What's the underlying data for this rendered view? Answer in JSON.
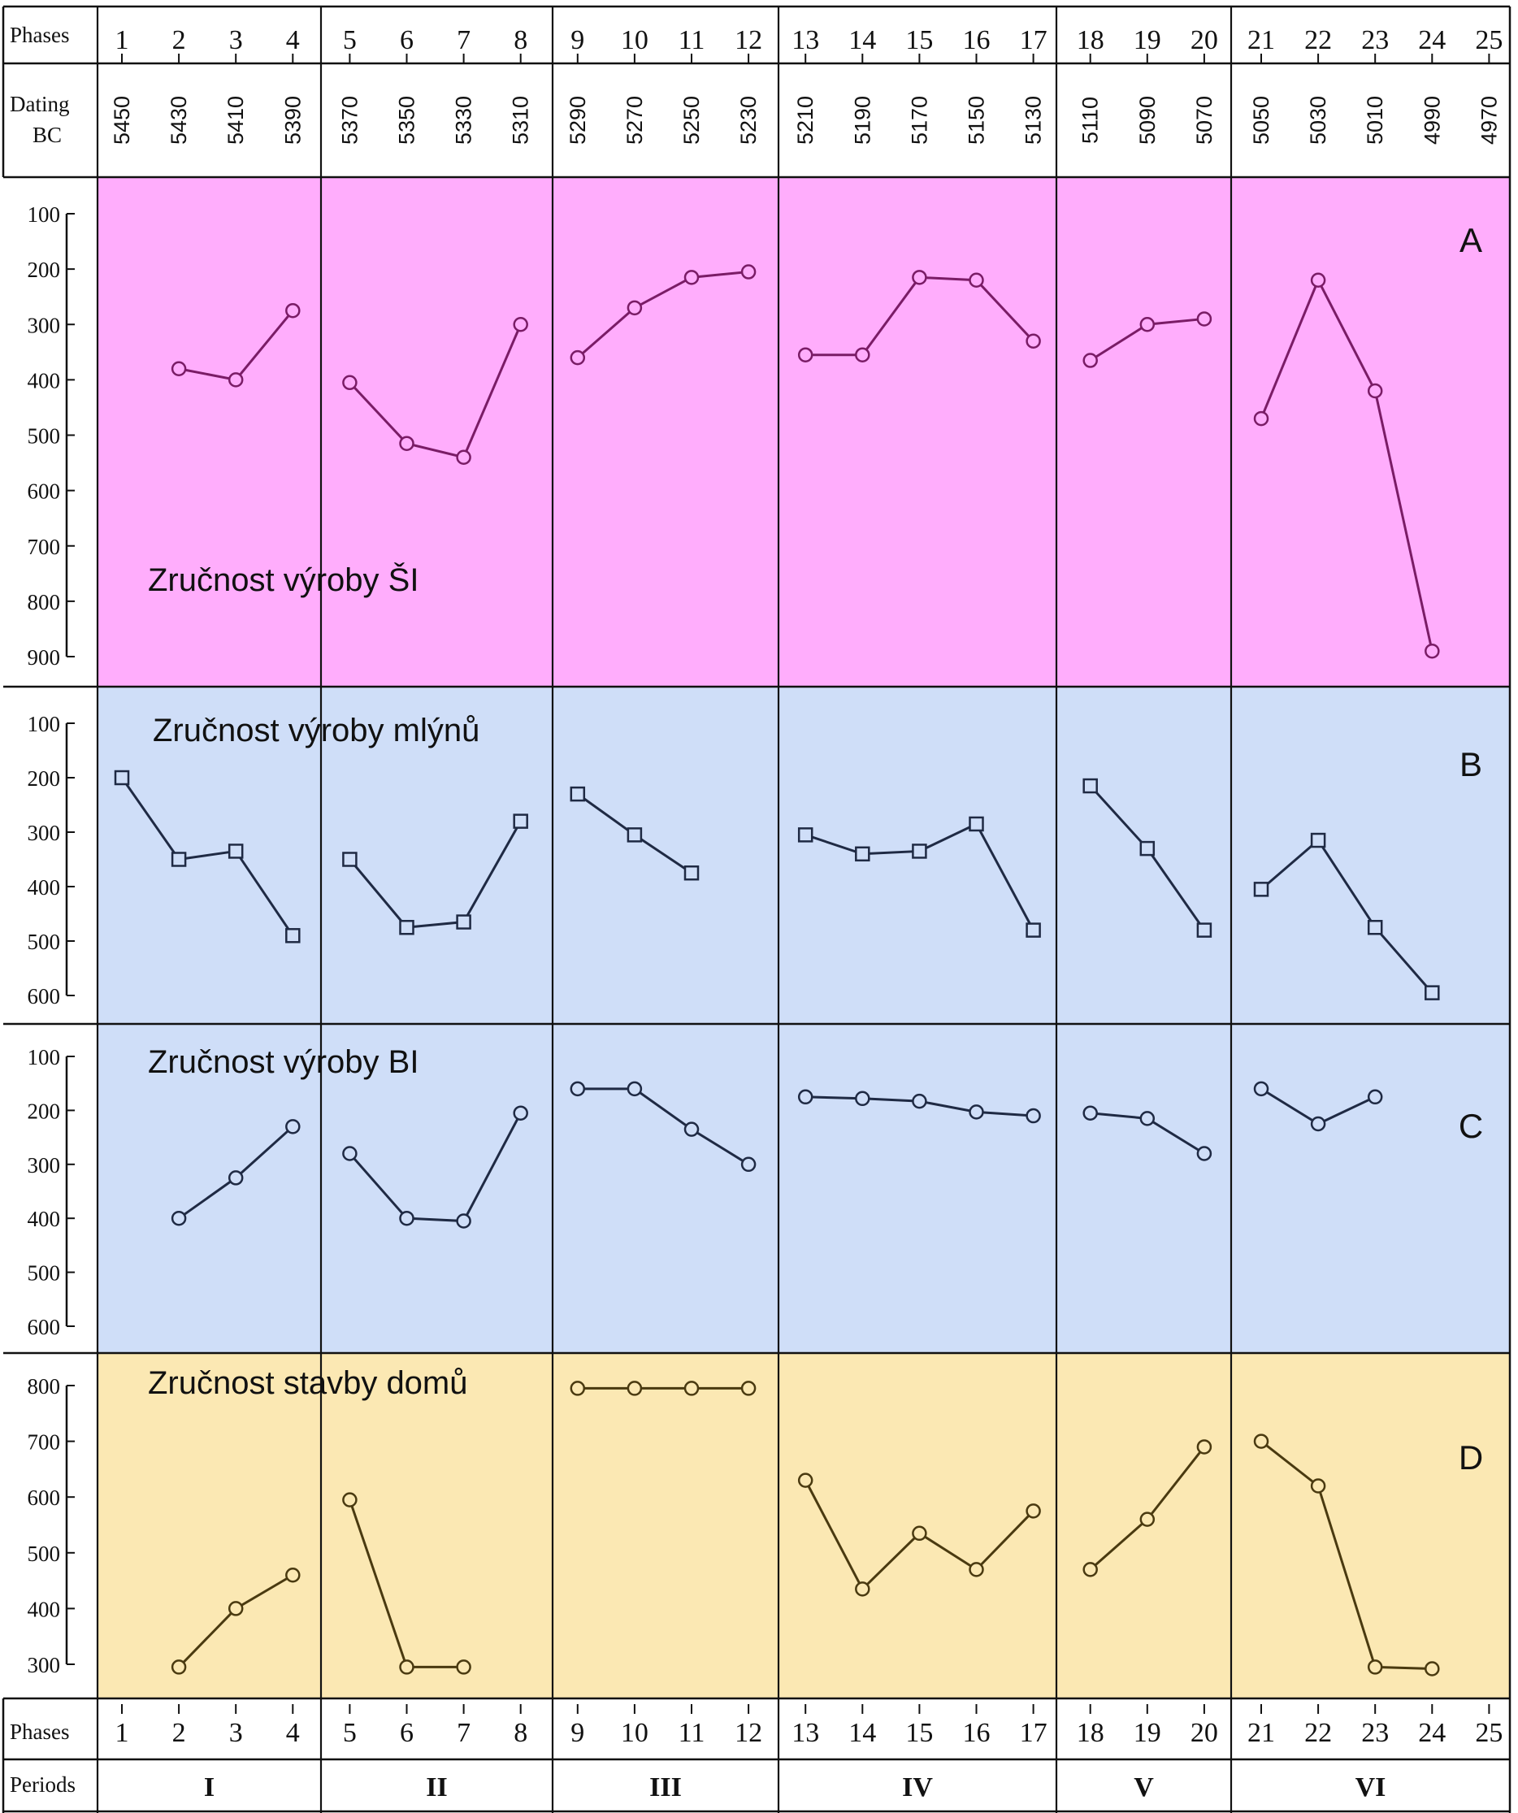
{
  "header": {
    "phases_label": "Phases",
    "dating_label_line1": "Dating",
    "dating_label_line2": "BC",
    "periods_label": "Periods"
  },
  "phases": [
    "1",
    "2",
    "3",
    "4",
    "5",
    "6",
    "7",
    "8",
    "9",
    "10",
    "11",
    "12",
    "13",
    "14",
    "15",
    "16",
    "17",
    "18",
    "19",
    "20",
    "21",
    "22",
    "23",
    "24",
    "25"
  ],
  "dating_bc": [
    "5450",
    "5430",
    "5410",
    "5390",
    "5370",
    "5350",
    "5330",
    "5310",
    "5290",
    "5270",
    "5250",
    "5230",
    "5210",
    "5190",
    "5170",
    "5150",
    "5130",
    "5110",
    "5090",
    "5070",
    "5050",
    "5030",
    "5010",
    "4990",
    "4970"
  ],
  "periods": [
    {
      "label": "I",
      "from_phase": 1,
      "to_phase": 4
    },
    {
      "label": "II",
      "from_phase": 5,
      "to_phase": 8
    },
    {
      "label": "III",
      "from_phase": 9,
      "to_phase": 12
    },
    {
      "label": "IV",
      "from_phase": 13,
      "to_phase": 17
    },
    {
      "label": "V",
      "from_phase": 18,
      "to_phase": 20
    },
    {
      "label": "VI",
      "from_phase": 21,
      "to_phase": 25
    }
  ],
  "colors": {
    "panel_A": "#FFADFC",
    "panel_B": "#CFDEF8",
    "panel_C": "#CFDEF8",
    "panel_D": "#FBE8B3",
    "line_A": "#7A1C66",
    "line_B": "#1F2A44",
    "line_C": "#1F2A44",
    "line_D": "#4A3A10",
    "grid": "#111111"
  },
  "chart_data": [
    {
      "type": "line",
      "letter": "A",
      "title": "Zručnost výroby ŠI",
      "marker": "circle",
      "ylim": [
        100,
        900
      ],
      "y_ticks": [
        100,
        200,
        300,
        400,
        500,
        600,
        700,
        800,
        900
      ],
      "y_inverted": true,
      "segments": [
        {
          "period": "I",
          "x": [
            2,
            3,
            4
          ],
          "y": [
            380,
            400,
            275
          ]
        },
        {
          "period": "II",
          "x": [
            5,
            6,
            7,
            8
          ],
          "y": [
            405,
            515,
            540,
            300
          ]
        },
        {
          "period": "III",
          "x": [
            9,
            10,
            11,
            12
          ],
          "y": [
            360,
            270,
            215,
            205
          ]
        },
        {
          "period": "IV",
          "x": [
            13,
            14,
            15,
            16,
            17
          ],
          "y": [
            355,
            355,
            215,
            220,
            330
          ]
        },
        {
          "period": "V",
          "x": [
            18,
            19,
            20
          ],
          "y": [
            365,
            300,
            290
          ]
        },
        {
          "period": "VI",
          "x": [
            21,
            22,
            23,
            24
          ],
          "y": [
            470,
            220,
            420,
            890
          ]
        }
      ]
    },
    {
      "type": "line",
      "letter": "B",
      "title": "Zručnost výroby mlýnů",
      "marker": "square",
      "ylim": [
        100,
        600
      ],
      "y_ticks": [
        100,
        200,
        300,
        400,
        500,
        600
      ],
      "y_inverted": true,
      "segments": [
        {
          "period": "I",
          "x": [
            1,
            2,
            3,
            4
          ],
          "y": [
            200,
            350,
            335,
            490
          ]
        },
        {
          "period": "II",
          "x": [
            5,
            6,
            7,
            8
          ],
          "y": [
            350,
            475,
            465,
            280
          ]
        },
        {
          "period": "III",
          "x": [
            9,
            10,
            11
          ],
          "y": [
            230,
            305,
            375
          ]
        },
        {
          "period": "IV",
          "x": [
            13,
            14,
            15,
            16,
            17
          ],
          "y": [
            305,
            340,
            335,
            285,
            480
          ]
        },
        {
          "period": "V",
          "x": [
            18,
            19,
            20
          ],
          "y": [
            215,
            330,
            480
          ]
        },
        {
          "period": "VI",
          "x": [
            21,
            22,
            23,
            24
          ],
          "y": [
            405,
            315,
            475,
            595
          ]
        }
      ]
    },
    {
      "type": "line",
      "letter": "C",
      "title": "Zručnost výroby BI",
      "marker": "circle",
      "ylim": [
        100,
        600
      ],
      "y_ticks": [
        100,
        200,
        300,
        400,
        500,
        600
      ],
      "y_inverted": true,
      "segments": [
        {
          "period": "I",
          "x": [
            2,
            3,
            4
          ],
          "y": [
            400,
            325,
            230
          ]
        },
        {
          "period": "II",
          "x": [
            5,
            6,
            7,
            8
          ],
          "y": [
            280,
            400,
            405,
            205
          ]
        },
        {
          "period": "III",
          "x": [
            9,
            10,
            11,
            12
          ],
          "y": [
            160,
            160,
            235,
            300
          ]
        },
        {
          "period": "IV",
          "x": [
            13,
            14,
            15,
            16,
            17
          ],
          "y": [
            175,
            178,
            183,
            203,
            210
          ]
        },
        {
          "period": "V",
          "x": [
            18,
            19,
            20
          ],
          "y": [
            205,
            215,
            280
          ]
        },
        {
          "period": "VI",
          "x": [
            21,
            22,
            23
          ],
          "y": [
            160,
            225,
            175
          ]
        }
      ]
    },
    {
      "type": "line",
      "letter": "D",
      "title": "Zručnost stavby domů",
      "marker": "circle",
      "ylim": [
        300,
        800
      ],
      "y_ticks": [
        300,
        400,
        500,
        600,
        700,
        800
      ],
      "y_inverted": false,
      "segments": [
        {
          "period": "I",
          "x": [
            2,
            3,
            4
          ],
          "y": [
            295,
            400,
            460
          ]
        },
        {
          "period": "II",
          "x": [
            5,
            6,
            7
          ],
          "y": [
            595,
            295,
            295
          ]
        },
        {
          "period": "III",
          "x": [
            9,
            10,
            11,
            12
          ],
          "y": [
            795,
            795,
            795,
            795
          ]
        },
        {
          "period": "IV",
          "x": [
            13,
            14,
            15,
            16,
            17
          ],
          "y": [
            630,
            435,
            535,
            470,
            575
          ]
        },
        {
          "period": "V",
          "x": [
            18,
            19,
            20
          ],
          "y": [
            470,
            560,
            690
          ]
        },
        {
          "period": "VI",
          "x": [
            21,
            22,
            23,
            24
          ],
          "y": [
            700,
            620,
            295,
            292
          ]
        }
      ]
    }
  ]
}
